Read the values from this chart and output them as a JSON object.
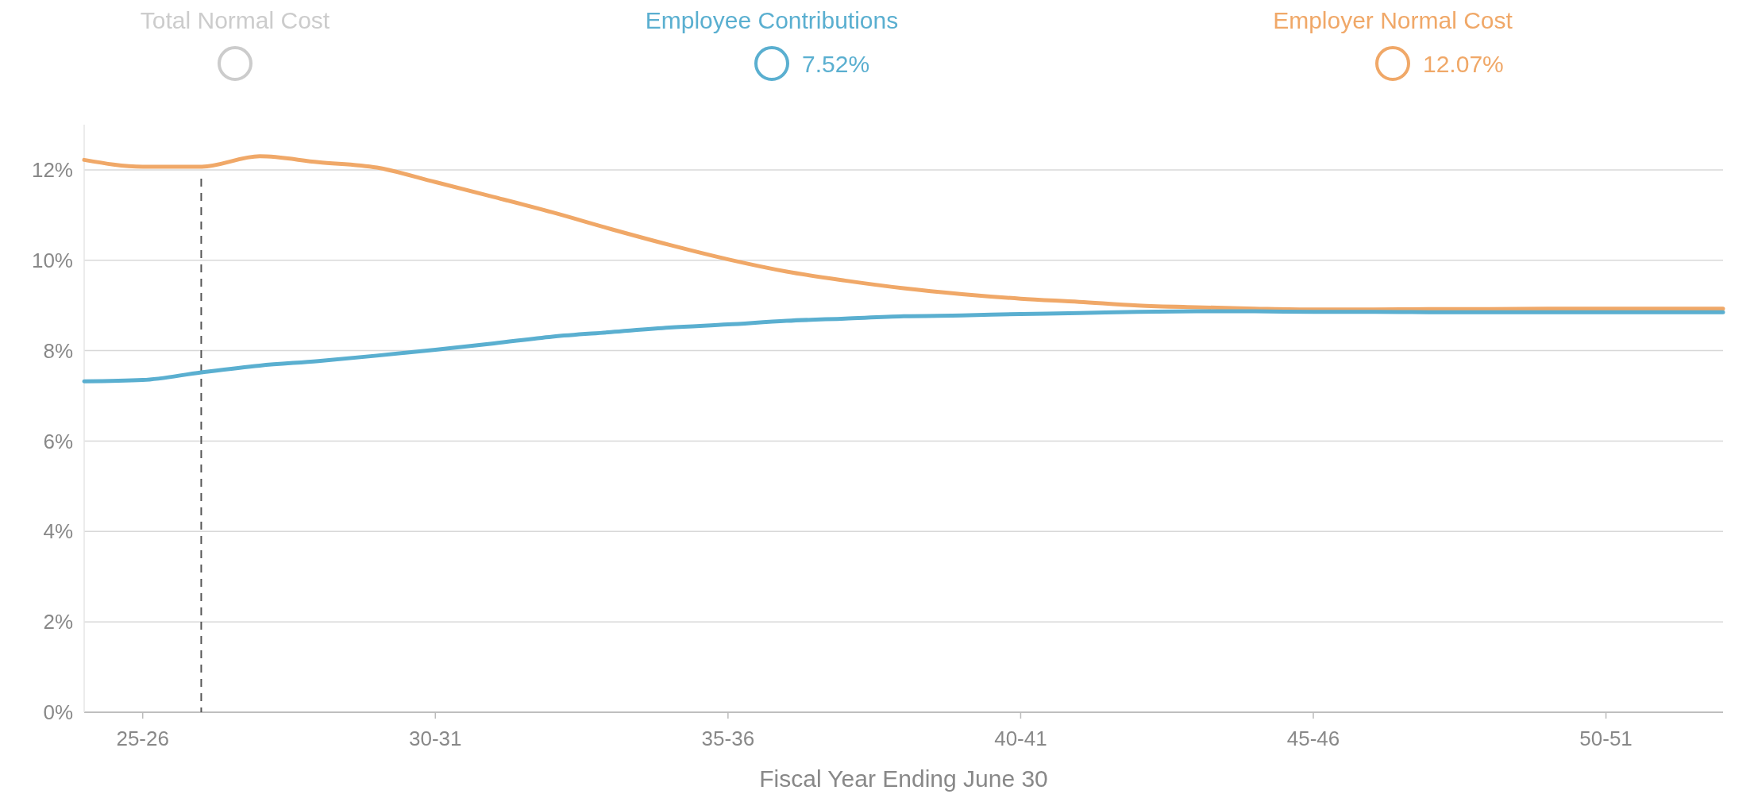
{
  "chart_data": {
    "type": "line",
    "xlabel": "Fiscal Year Ending June 30",
    "categories": [
      null,
      "25-26",
      null,
      null,
      null,
      null,
      "30-31",
      null,
      null,
      null,
      null,
      "35-36",
      null,
      null,
      null,
      null,
      "40-41",
      null,
      null,
      null,
      null,
      "45-46",
      null,
      null,
      null,
      null,
      "50-51",
      null,
      null
    ],
    "ylim": [
      0,
      13
    ],
    "yticks": [
      {
        "value": 0,
        "label": "0%"
      },
      {
        "value": 2,
        "label": "2%"
      },
      {
        "value": 4,
        "label": "4%"
      },
      {
        "value": 6,
        "label": "6%"
      },
      {
        "value": 8,
        "label": "8%"
      },
      {
        "value": 10,
        "label": "10%"
      },
      {
        "value": 12,
        "label": "12%"
      }
    ],
    "grid": "y",
    "legend": "top",
    "marker": "none",
    "line_style": "solid",
    "series": [
      {
        "name": "Total Normal Cost",
        "color": "#cccccc",
        "values": [
          null,
          null,
          null,
          null,
          null,
          null,
          null,
          null,
          null,
          null,
          null,
          null,
          null,
          null,
          null,
          null,
          null,
          null,
          null,
          null,
          null,
          null,
          null,
          null,
          null,
          null,
          null,
          null,
          null
        ]
      },
      {
        "name": "Employee Contributions",
        "color": "#5aafd0",
        "values": [
          7.32,
          7.35,
          7.52,
          7.67,
          7.77,
          7.89,
          8.02,
          8.16,
          8.31,
          8.41,
          8.51,
          8.58,
          8.66,
          8.71,
          8.76,
          8.78,
          8.81,
          8.83,
          8.86,
          8.87,
          8.87,
          8.86,
          8.86,
          8.85,
          8.85,
          8.85,
          8.85,
          8.85,
          8.85
        ]
      },
      {
        "name": "Employer Normal Cost",
        "color": "#f0a868",
        "values": [
          12.22,
          12.07,
          12.07,
          12.3,
          12.17,
          12.05,
          11.73,
          11.4,
          11.06,
          10.69,
          10.34,
          10.02,
          9.75,
          9.55,
          9.38,
          9.25,
          9.15,
          9.08,
          9.0,
          8.96,
          8.93,
          8.91,
          8.91,
          8.92,
          8.92,
          8.93,
          8.93,
          8.93,
          8.93
        ]
      }
    ],
    "annotations": [
      "7.52%",
      "12.07%"
    ]
  }
}
